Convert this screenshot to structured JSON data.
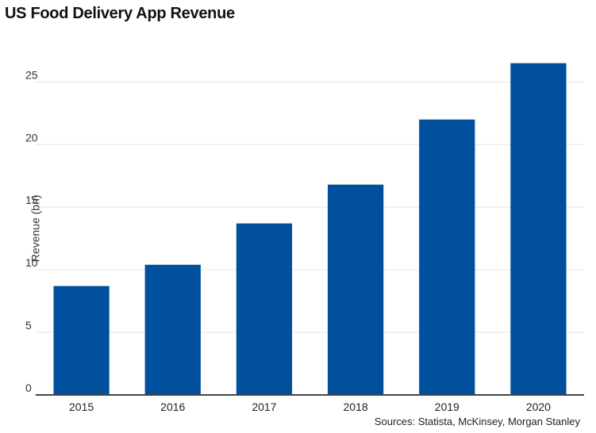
{
  "chart_data": {
    "type": "bar",
    "title": "US Food Delivery App Revenue",
    "ylabel": "Revenue (bn)",
    "xlabel": "",
    "source": "Sources: Statista, McKinsey, Morgan Stanley",
    "categories": [
      "2015",
      "2016",
      "2017",
      "2018",
      "2019",
      "2020"
    ],
    "values": [
      8.7,
      10.4,
      13.7,
      16.8,
      22.0,
      26.5
    ],
    "ylim": [
      0,
      28
    ],
    "yticks": [
      0,
      5,
      10,
      15,
      20,
      25
    ],
    "grid": true,
    "bar_color": "#00509e"
  }
}
